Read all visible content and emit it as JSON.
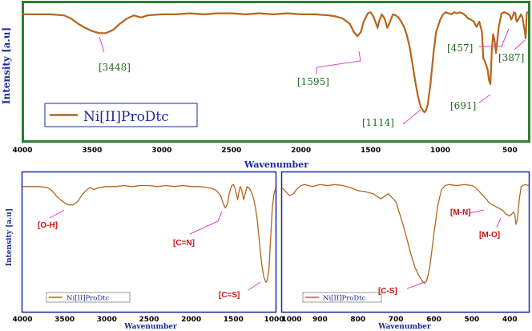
{
  "chart_data": [
    {
      "type": "line",
      "panel": "top",
      "xlabel": "Wavenumber",
      "ylabel": "Intensity [a.u]",
      "x_ticks": [
        4000,
        3500,
        3000,
        2500,
        2000,
        1500,
        1000,
        500
      ],
      "xlim": [
        4000,
        370
      ],
      "series": [
        {
          "name": "Ni[II]ProDtc",
          "color": "#b5651d",
          "x": [
            4000,
            3900,
            3800,
            3700,
            3650,
            3600,
            3550,
            3500,
            3450,
            3400,
            3350,
            3300,
            3250,
            3200,
            3150,
            3100,
            3000,
            2900,
            2800,
            2700,
            2600,
            2500,
            2400,
            2300,
            2200,
            2100,
            2000,
            1900,
            1800,
            1750,
            1700,
            1650,
            1620,
            1595,
            1570,
            1550,
            1520,
            1500,
            1480,
            1460,
            1450,
            1440,
            1420,
            1400,
            1380,
            1360,
            1340,
            1320,
            1300,
            1280,
            1260,
            1240,
            1220,
            1200,
            1180,
            1160,
            1140,
            1120,
            1114,
            1105,
            1090,
            1070,
            1050,
            1030,
            1000,
            980,
            960,
            940,
            920,
            900,
            880,
            860,
            840,
            820,
            800,
            780,
            760,
            740,
            720,
            700,
            691,
            680,
            670,
            660,
            650,
            640,
            630,
            620,
            610,
            600,
            580,
            560,
            540,
            520,
            500,
            490,
            480,
            470,
            460,
            457,
            450,
            440,
            420,
            410,
            400,
            395,
            390,
            387,
            384,
            380,
            375,
            370
          ],
          "y": [
            0.97,
            0.97,
            0.97,
            0.96,
            0.93,
            0.88,
            0.84,
            0.81,
            0.79,
            0.79,
            0.82,
            0.88,
            0.93,
            0.96,
            0.94,
            0.96,
            0.97,
            0.97,
            0.98,
            0.97,
            0.98,
            0.98,
            0.97,
            0.98,
            0.97,
            0.98,
            0.97,
            0.97,
            0.96,
            0.95,
            0.93,
            0.88,
            0.8,
            0.76,
            0.8,
            0.9,
            0.98,
            0.99,
            0.95,
            0.88,
            0.84,
            0.9,
            0.97,
            0.93,
            0.84,
            0.9,
            0.97,
            0.96,
            0.94,
            0.9,
            0.85,
            0.77,
            0.66,
            0.5,
            0.33,
            0.18,
            0.08,
            0.04,
            0.03,
            0.04,
            0.1,
            0.3,
            0.58,
            0.8,
            0.92,
            0.97,
            0.99,
            0.98,
            0.97,
            0.99,
            0.98,
            0.99,
            0.98,
            0.96,
            0.93,
            0.92,
            0.9,
            0.85,
            0.9,
            0.8,
            0.55,
            0.52,
            0.48,
            0.44,
            0.34,
            0.3,
            0.62,
            0.78,
            0.72,
            0.6,
            0.85,
            0.98,
            0.99,
            0.98,
            0.96,
            0.92,
            0.95,
            0.99,
            0.98,
            0.93,
            0.9,
            0.92,
            0.97,
            0.94,
            0.86,
            0.82,
            0.78,
            0.74,
            0.82,
            0.97,
            0.99,
            0.99
          ]
        }
      ],
      "annotations": [
        "[3448]",
        "[1595]",
        "[1114]",
        "[691]",
        "[457]",
        "[387]"
      ]
    },
    {
      "type": "line",
      "panel": "bottom-left",
      "xlabel": "Wavenumber",
      "ylabel": "Intensity [a.u]",
      "x_ticks": [
        4000,
        3500,
        3000,
        2500,
        2000,
        1500,
        1000
      ],
      "xlim": [
        4000,
        1000
      ],
      "series": [
        {
          "name": "Ni[II]ProDtc",
          "color": "#b5651d",
          "x": [
            4000,
            3900,
            3800,
            3700,
            3650,
            3600,
            3550,
            3500,
            3450,
            3400,
            3350,
            3300,
            3250,
            3200,
            3150,
            3100,
            3000,
            2900,
            2800,
            2700,
            2600,
            2500,
            2400,
            2300,
            2200,
            2100,
            2000,
            1900,
            1800,
            1750,
            1700,
            1650,
            1620,
            1595,
            1570,
            1550,
            1520,
            1500,
            1480,
            1460,
            1450,
            1440,
            1420,
            1400,
            1380,
            1360,
            1340,
            1320,
            1300,
            1280,
            1260,
            1240,
            1220,
            1200,
            1180,
            1160,
            1140,
            1120,
            1114,
            1100,
            1080,
            1060,
            1040,
            1020,
            1000
          ],
          "y": [
            0.97,
            0.97,
            0.97,
            0.96,
            0.93,
            0.88,
            0.84,
            0.81,
            0.79,
            0.79,
            0.82,
            0.88,
            0.93,
            0.96,
            0.94,
            0.96,
            0.97,
            0.97,
            0.98,
            0.97,
            0.98,
            0.98,
            0.97,
            0.98,
            0.97,
            0.98,
            0.97,
            0.97,
            0.96,
            0.95,
            0.93,
            0.88,
            0.8,
            0.76,
            0.8,
            0.9,
            0.98,
            0.99,
            0.95,
            0.88,
            0.84,
            0.9,
            0.97,
            0.93,
            0.84,
            0.9,
            0.97,
            0.96,
            0.94,
            0.9,
            0.85,
            0.77,
            0.66,
            0.5,
            0.33,
            0.18,
            0.08,
            0.04,
            0.03,
            0.05,
            0.15,
            0.45,
            0.75,
            0.9,
            0.95
          ]
        }
      ],
      "annotations": [
        "[O-H]",
        "[C=N]",
        "[C=S]"
      ]
    },
    {
      "type": "line",
      "panel": "bottom-right",
      "xlabel": "Wavenumber",
      "x_ticks": [
        1000,
        900,
        800,
        700,
        600,
        500,
        400
      ],
      "xlim": [
        1000,
        350
      ],
      "series": [
        {
          "name": "Ni[II]ProDtc",
          "color": "#b5651d",
          "x": [
            1000,
            990,
            980,
            970,
            960,
            950,
            940,
            930,
            920,
            900,
            880,
            860,
            840,
            820,
            800,
            780,
            760,
            740,
            720,
            700,
            690,
            680,
            670,
            660,
            650,
            640,
            630,
            625,
            620,
            615,
            610,
            600,
            590,
            580,
            570,
            560,
            540,
            520,
            500,
            490,
            480,
            470,
            460,
            457,
            450,
            440,
            420,
            410,
            400,
            395,
            390,
            387,
            384,
            380,
            375,
            370,
            360,
            350
          ],
          "y": [
            0.96,
            0.92,
            0.88,
            0.9,
            0.95,
            0.98,
            0.99,
            0.98,
            0.97,
            0.99,
            0.98,
            0.99,
            0.98,
            0.96,
            0.93,
            0.92,
            0.9,
            0.85,
            0.9,
            0.82,
            0.7,
            0.58,
            0.44,
            0.3,
            0.18,
            0.1,
            0.04,
            0.02,
            0.04,
            0.1,
            0.2,
            0.5,
            0.78,
            0.94,
            0.98,
            0.99,
            0.98,
            0.99,
            0.98,
            0.96,
            0.92,
            0.88,
            0.84,
            0.82,
            0.8,
            0.78,
            0.74,
            0.7,
            0.68,
            0.7,
            0.72,
            0.7,
            0.6,
            0.65,
            0.85,
            0.97,
            0.99,
            0.98
          ]
        }
      ],
      "annotations": [
        "[C-S]",
        "[M-N]",
        "[M-O]"
      ]
    }
  ]
}
